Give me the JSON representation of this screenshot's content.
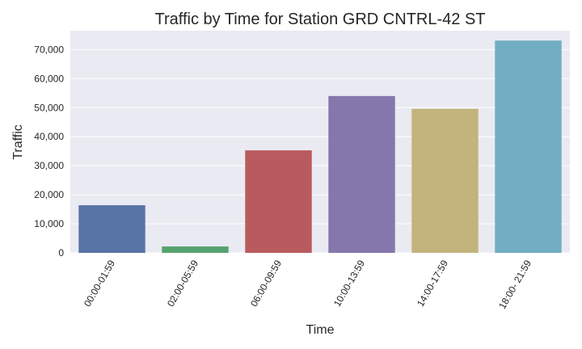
{
  "chart_data": {
    "type": "bar",
    "title": "Traffic by Time for Station GRD CNTRL-42 ST",
    "xlabel": "Time",
    "ylabel": "Traffic",
    "categories": [
      "00:00-01:59",
      "02:00-05:59",
      "06:00-09:59",
      "10:00-13:59",
      "14:00-17:59",
      "18:00- 21:59"
    ],
    "values": [
      16400,
      2200,
      35300,
      54000,
      49600,
      73100
    ],
    "colors": [
      "#5874a6",
      "#55a36e",
      "#b95b5e",
      "#8577ac",
      "#c3b37c",
      "#71adc3"
    ],
    "ylim": [
      0,
      76500
    ],
    "yticks": [
      0,
      10000,
      20000,
      30000,
      40000,
      50000,
      60000,
      70000
    ],
    "ytick_labels": [
      "0",
      "10,000",
      "20,000",
      "30,000",
      "40,000",
      "50,000",
      "60,000",
      "70,000"
    ],
    "grid": "horizontal",
    "background": "#eaeaf2"
  }
}
